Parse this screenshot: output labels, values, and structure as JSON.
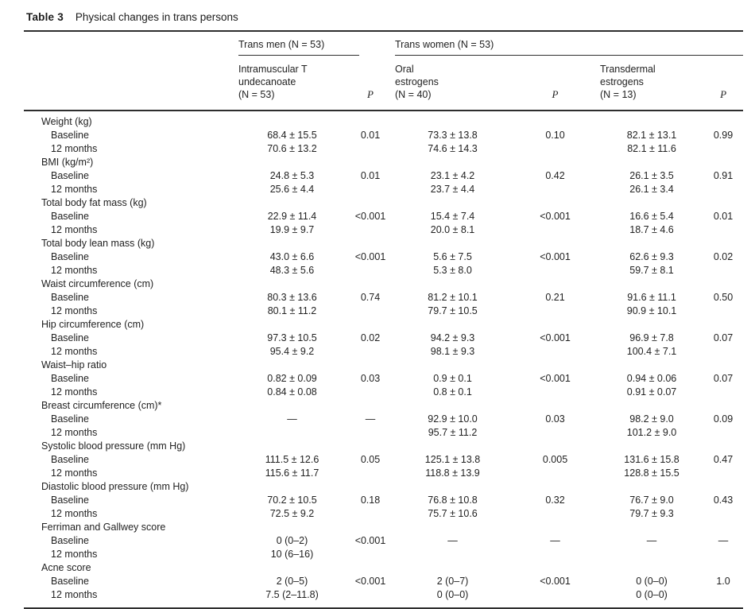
{
  "table": {
    "number": "Table 3",
    "caption": "Physical changes in trans persons",
    "groups": [
      {
        "label": "Trans men (N = 53)"
      },
      {
        "label": "Trans women (N = 53)"
      }
    ],
    "columns": [
      {
        "header": "Intramuscular T\nundecanoate\n(N = 53)"
      },
      {
        "header": "P"
      },
      {
        "header": "Oral\nestrogens\n(N = 40)"
      },
      {
        "header": "P"
      },
      {
        "header": "Transdermal\nestrogens\n(N = 13)"
      },
      {
        "header": "P"
      }
    ],
    "sections": [
      {
        "label": "Weight (kg)",
        "rows": [
          {
            "label": "Baseline",
            "cells": [
              "68.4 ± 15.5",
              "0.01",
              "73.3 ± 13.8",
              "0.10",
              "82.1 ± 13.1",
              "0.99"
            ]
          },
          {
            "label": "12 months",
            "cells": [
              "70.6 ± 13.2",
              "",
              "74.6 ± 14.3",
              "",
              "82.1 ± 11.6",
              ""
            ]
          }
        ]
      },
      {
        "label": "BMI (kg/m²)",
        "rows": [
          {
            "label": "Baseline",
            "cells": [
              "24.8 ± 5.3",
              "0.01",
              "23.1 ± 4.2",
              "0.42",
              "26.1 ± 3.5",
              "0.91"
            ]
          },
          {
            "label": "12 months",
            "cells": [
              "25.6 ± 4.4",
              "",
              "23.7 ± 4.4",
              "",
              "26.1 ± 3.4",
              ""
            ]
          }
        ]
      },
      {
        "label": "Total body fat mass (kg)",
        "rows": [
          {
            "label": "Baseline",
            "cells": [
              "22.9 ± 11.4",
              "<0.001",
              "15.4 ± 7.4",
              "<0.001",
              "16.6 ± 5.4",
              "0.01"
            ]
          },
          {
            "label": "12 months",
            "cells": [
              "19.9 ± 9.7",
              "",
              "20.0 ± 8.1",
              "",
              "18.7 ± 4.6",
              ""
            ]
          }
        ]
      },
      {
        "label": "Total body lean mass (kg)",
        "rows": [
          {
            "label": "Baseline",
            "cells": [
              "43.0 ± 6.6",
              "<0.001",
              "5.6 ± 7.5",
              "<0.001",
              "62.6 ± 9.3",
              "0.02"
            ]
          },
          {
            "label": "12 months",
            "cells": [
              "48.3 ± 5.6",
              "",
              "5.3 ± 8.0",
              "",
              "59.7 ± 8.1",
              ""
            ]
          }
        ]
      },
      {
        "label": "Waist circumference (cm)",
        "rows": [
          {
            "label": "Baseline",
            "cells": [
              "80.3 ± 13.6",
              "0.74",
              "81.2 ± 10.1",
              "0.21",
              "91.6 ± 11.1",
              "0.50"
            ]
          },
          {
            "label": "12 months",
            "cells": [
              "80.1 ± 11.2",
              "",
              "79.7 ± 10.5",
              "",
              "90.9 ± 10.1",
              ""
            ]
          }
        ]
      },
      {
        "label": "Hip circumference (cm)",
        "rows": [
          {
            "label": "Baseline",
            "cells": [
              "97.3 ± 10.5",
              "0.02",
              "94.2 ± 9.3",
              "<0.001",
              "96.9 ± 7.8",
              "0.07"
            ]
          },
          {
            "label": "12 months",
            "cells": [
              "95.4 ± 9.2",
              "",
              "98.1 ± 9.3",
              "",
              "100.4 ± 7.1",
              ""
            ]
          }
        ]
      },
      {
        "label": "Waist–hip ratio",
        "rows": [
          {
            "label": "Baseline",
            "cells": [
              "0.82 ± 0.09",
              "0.03",
              "0.9 ± 0.1",
              "<0.001",
              "0.94 ± 0.06",
              "0.07"
            ]
          },
          {
            "label": "12 months",
            "cells": [
              "0.84 ± 0.08",
              "",
              "0.8 ± 0.1",
              "",
              "0.91 ± 0.07",
              ""
            ]
          }
        ]
      },
      {
        "label": "Breast circumference (cm)*",
        "rows": [
          {
            "label": "Baseline",
            "cells": [
              "—",
              "—",
              "92.9 ± 10.0",
              "0.03",
              "98.2 ± 9.0",
              "0.09"
            ]
          },
          {
            "label": "12 months",
            "cells": [
              "",
              "",
              "95.7 ± 11.2",
              "",
              "101.2 ± 9.0",
              ""
            ]
          }
        ]
      },
      {
        "label": "Systolic blood pressure (mm Hg)",
        "rows": [
          {
            "label": "Baseline",
            "cells": [
              "111.5 ± 12.6",
              "0.05",
              "125.1 ± 13.8",
              "0.005",
              "131.6 ± 15.8",
              "0.47"
            ]
          },
          {
            "label": "12 months",
            "cells": [
              "115.6 ± 11.7",
              "",
              "118.8 ± 13.9",
              "",
              "128.8 ± 15.5",
              ""
            ]
          }
        ]
      },
      {
        "label": "Diastolic blood pressure (mm Hg)",
        "rows": [
          {
            "label": "Baseline",
            "cells": [
              "70.2 ± 10.5",
              "0.18",
              "76.8 ± 10.8",
              "0.32",
              "76.7 ± 9.0",
              "0.43"
            ]
          },
          {
            "label": "12 months",
            "cells": [
              "72.5 ± 9.2",
              "",
              "75.7 ± 10.6",
              "",
              "79.7 ± 9.3",
              ""
            ]
          }
        ]
      },
      {
        "label": "Ferriman and Gallwey score",
        "rows": [
          {
            "label": "Baseline",
            "cells": [
              "0 (0–2)",
              "<0.001",
              "—",
              "—",
              "—",
              "—"
            ]
          },
          {
            "label": "12 months",
            "cells": [
              "10 (6–16)",
              "",
              "",
              "",
              "",
              ""
            ]
          }
        ]
      },
      {
        "label": "Acne score",
        "rows": [
          {
            "label": "Baseline",
            "cells": [
              "2 (0–5)",
              "<0.001",
              "2 (0–7)",
              "<0.001",
              "0 (0–0)",
              "1.0"
            ]
          },
          {
            "label": "12 months",
            "cells": [
              "7.5 (2–11.8)",
              "",
              "0 (0–0)",
              "",
              "0 (0–0)",
              ""
            ]
          }
        ]
      }
    ]
  }
}
